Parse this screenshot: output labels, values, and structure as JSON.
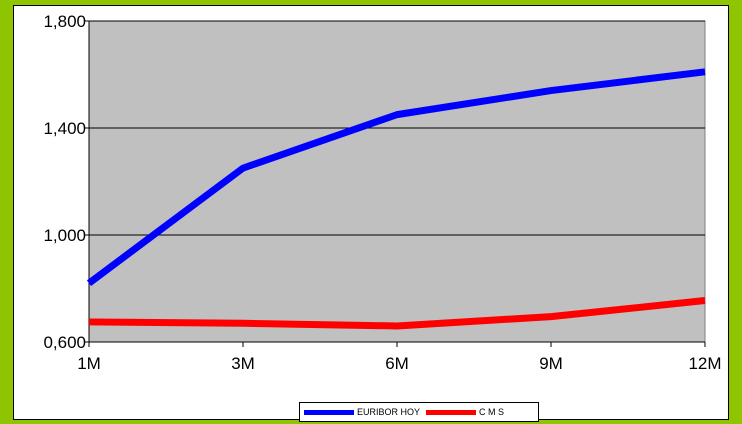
{
  "colors": {
    "page_background": "#8fc400",
    "plot_background": "#c0c0c0",
    "gridline": "#000000",
    "series_euribor": "#0000ff",
    "series_cms": "#ff0000"
  },
  "chart_data": {
    "type": "line",
    "title": "",
    "xlabel": "",
    "ylabel": "",
    "categories": [
      "1M",
      "3M",
      "6M",
      "9M",
      "12M"
    ],
    "y_ticks": [
      "0,600",
      "1,000",
      "1,400",
      "1,800"
    ],
    "ylim": [
      0.6,
      1.8
    ],
    "grid": "horizontal",
    "legend_placement": "bottom",
    "series": [
      {
        "name": "EURIBOR HOY",
        "color": "#0000ff",
        "values": [
          0.82,
          1.25,
          1.45,
          1.54,
          1.61
        ]
      },
      {
        "name": "C M S",
        "color": "#ff0000",
        "values": [
          0.675,
          0.67,
          0.66,
          0.695,
          0.755
        ]
      }
    ]
  }
}
